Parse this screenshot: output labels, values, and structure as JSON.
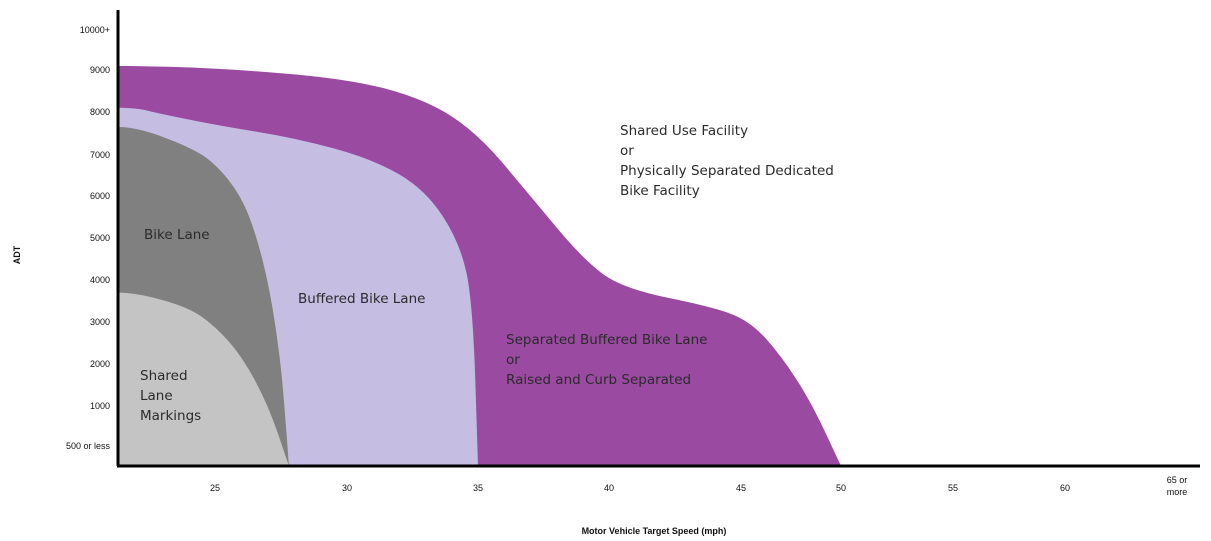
{
  "chart_data": {
    "type": "area",
    "xlabel": "Motor Vehicle Target Speed (mph)",
    "ylabel": "ADT",
    "x_ticks": [
      "25",
      "30",
      "35",
      "40",
      "45",
      "50",
      "55",
      "60",
      "65 or more"
    ],
    "y_ticks": [
      "500 or less",
      "1000",
      "2000",
      "3000",
      "4000",
      "5000",
      "6000",
      "7000",
      "8000",
      "9000",
      "10000+"
    ],
    "x_range": [
      22,
      67
    ],
    "y_range": [
      0,
      10000
    ],
    "grid": false,
    "legend": "none",
    "regions": [
      {
        "name": "Separated Buffered Bike Lane / Raised and Curb Separated",
        "color": "#9b4aa1",
        "label_lines": [
          "Separated Buffered Bike Lane",
          "or",
          "Raised and Curb Separated"
        ],
        "boundary": [
          [
            22,
            9100
          ],
          [
            25,
            9050
          ],
          [
            30,
            8800
          ],
          [
            33,
            8300
          ],
          [
            35,
            7500
          ],
          [
            37,
            6000
          ],
          [
            39,
            4500
          ],
          [
            40.5,
            3800
          ],
          [
            44,
            3350
          ],
          [
            45.5,
            3000
          ],
          [
            47,
            2200
          ],
          [
            48.5,
            1100
          ],
          [
            50,
            0
          ]
        ]
      },
      {
        "name": "Buffered Bike Lane",
        "color": "#c6bde3",
        "label_lines": [
          "Buffered Bike Lane"
        ],
        "boundary": [
          [
            22,
            8100
          ],
          [
            23,
            7950
          ],
          [
            25,
            7700
          ],
          [
            28,
            7400
          ],
          [
            31,
            6900
          ],
          [
            33,
            6150
          ],
          [
            34.3,
            4900
          ],
          [
            34.8,
            3500
          ],
          [
            35,
            0
          ]
        ]
      },
      {
        "name": "Bike Lane",
        "color": "#808080",
        "label_lines": [
          "Bike Lane"
        ],
        "boundary": [
          [
            22,
            7650
          ],
          [
            24,
            7200
          ],
          [
            25,
            6800
          ],
          [
            26,
            6000
          ],
          [
            26.6,
            5000
          ],
          [
            27.1,
            3700
          ],
          [
            27.5,
            2000
          ],
          [
            27.7,
            600
          ],
          [
            27.8,
            0
          ]
        ]
      },
      {
        "name": "Shared Lane Markings",
        "color": "#c4c4c4",
        "label_lines": [
          "Shared",
          "Lane",
          "Markings"
        ],
        "boundary": [
          [
            22,
            3700
          ],
          [
            24,
            3350
          ],
          [
            25,
            2900
          ],
          [
            26,
            2200
          ],
          [
            27,
            1050
          ],
          [
            27.8,
            0
          ]
        ]
      }
    ],
    "annotation": {
      "label_lines": [
        "Shared Use Facility",
        "or",
        "Physically Separated Dedicated",
        "Bike Facility"
      ]
    }
  }
}
